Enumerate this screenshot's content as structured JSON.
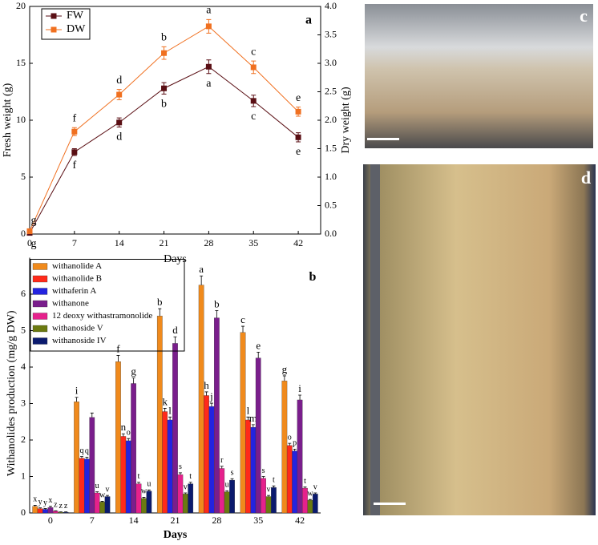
{
  "chart_data": [
    {
      "type": "line",
      "panel": "a",
      "x": [
        0,
        7,
        14,
        21,
        28,
        35,
        42
      ],
      "xlim": [
        0,
        45.5
      ],
      "xticks": [
        0,
        7,
        14,
        21,
        28,
        35,
        42
      ],
      "xlabel": "Days",
      "ylabel": "Fresh weight (g)",
      "y2label": "Dry weight (g)",
      "ylim": [
        0,
        20
      ],
      "yticks": [
        0,
        5,
        10,
        15,
        20
      ],
      "y2lim": [
        0,
        4
      ],
      "y2ticks": [
        {
          "value": 0,
          "label": "0.0"
        },
        {
          "value": 0.5,
          "label": "0.5"
        },
        {
          "value": 1,
          "label": "1.0"
        },
        {
          "value": 1.5,
          "label": "1.5"
        },
        {
          "value": 2,
          "label": "2.0"
        },
        {
          "value": 2.5,
          "label": "2.5"
        },
        {
          "value": 3,
          "label": "3.0"
        },
        {
          "value": 3.5,
          "label": "3.5"
        },
        {
          "value": 4,
          "label": "4.0"
        }
      ],
      "legend": "upper left",
      "series": [
        {
          "name": "FW",
          "color": "#5a0f14",
          "axis": "y",
          "values": [
            0.1,
            7.2,
            9.8,
            12.8,
            14.7,
            11.7,
            8.5
          ],
          "errors": [
            0.1,
            0.3,
            0.4,
            0.5,
            0.6,
            0.5,
            0.4
          ],
          "labels": [
            "g",
            "f",
            "d",
            "b",
            "a",
            "c",
            "e"
          ],
          "label_side": "below"
        },
        {
          "name": "DW",
          "color": "#f07020",
          "axis": "y2",
          "values": [
            0.05,
            1.8,
            2.45,
            3.18,
            3.65,
            2.93,
            2.15
          ],
          "errors": [
            0.02,
            0.07,
            0.09,
            0.11,
            0.12,
            0.11,
            0.08
          ],
          "labels": [
            "g",
            "f",
            "d",
            "b",
            "a",
            "c",
            "e"
          ],
          "label_side": "above"
        }
      ]
    },
    {
      "type": "bar",
      "panel": "b",
      "categories": [
        "0",
        "7",
        "14",
        "21",
        "28",
        "35",
        "42"
      ],
      "xlabel": "Days",
      "ylabel": "Withanolides production (mg/g DW)",
      "ylim": [
        0,
        7
      ],
      "yticks": [
        0,
        1,
        2,
        3,
        4,
        5,
        6
      ],
      "legend": "upper left",
      "series": [
        {
          "name": "withanolide A",
          "color": "#f08a1c",
          "values": [
            0.18,
            3.05,
            4.15,
            5.4,
            6.25,
            4.95,
            3.62
          ],
          "errors": [
            0.03,
            0.12,
            0.17,
            0.2,
            0.25,
            0.17,
            0.14
          ],
          "labels": [
            "x",
            "i",
            "f",
            "b",
            "a",
            "c",
            "g"
          ]
        },
        {
          "name": "withanolide B",
          "color": "#ff2a1a",
          "values": [
            0.12,
            1.5,
            2.1,
            2.78,
            3.22,
            2.55,
            1.85
          ],
          "errors": [
            0.02,
            0.05,
            0.07,
            0.09,
            0.1,
            0.08,
            0.06
          ],
          "labels": [
            "y",
            "q",
            "n",
            "k",
            "h",
            "l",
            "o"
          ]
        },
        {
          "name": "withaferin A",
          "color": "#2323e0",
          "values": [
            0.1,
            1.48,
            1.98,
            2.55,
            2.92,
            2.35,
            1.7
          ],
          "errors": [
            0.02,
            0.05,
            0.06,
            0.08,
            0.09,
            0.07,
            0.05
          ],
          "labels": [
            "y",
            "q",
            "o",
            "l",
            "j",
            "m",
            "p"
          ]
        },
        {
          "name": "withanone",
          "color": "#7a1e8c",
          "values": [
            0.15,
            2.62,
            3.55,
            4.65,
            5.35,
            4.25,
            3.1
          ],
          "errors": [
            0.03,
            0.12,
            0.15,
            0.18,
            0.2,
            0.16,
            0.13
          ],
          "labels": [
            "x",
            null,
            "g",
            "d",
            "b",
            "e",
            "i"
          ]
        },
        {
          "name": "12 deoxy withastramonolide",
          "color": "#e6218c",
          "values": [
            0.05,
            0.55,
            0.8,
            1.05,
            1.22,
            0.95,
            0.68
          ],
          "errors": [
            0.01,
            0.03,
            0.04,
            0.05,
            0.06,
            0.05,
            0.03
          ],
          "labels": [
            "z",
            "u",
            "t",
            "s",
            "r",
            "s",
            "t"
          ]
        },
        {
          "name": "withanoside V",
          "color": "#6b7a10",
          "values": [
            0.02,
            0.3,
            0.4,
            0.52,
            0.58,
            0.45,
            0.35
          ],
          "errors": [
            0.01,
            0.02,
            0.03,
            0.03,
            0.03,
            0.03,
            0.02
          ],
          "labels": [
            "z",
            "w",
            "w",
            "v",
            "u",
            "v",
            "w"
          ]
        },
        {
          "name": "withanoside IV",
          "color": "#0b1a6e",
          "values": [
            0.02,
            0.45,
            0.6,
            0.8,
            0.9,
            0.7,
            0.52
          ],
          "errors": [
            0.01,
            0.03,
            0.03,
            0.04,
            0.04,
            0.04,
            0.03
          ],
          "labels": [
            "z",
            "v",
            "u",
            "t",
            "s",
            "t",
            "v"
          ]
        }
      ]
    }
  ],
  "photos": [
    {
      "label": "c"
    },
    {
      "label": "d"
    }
  ]
}
